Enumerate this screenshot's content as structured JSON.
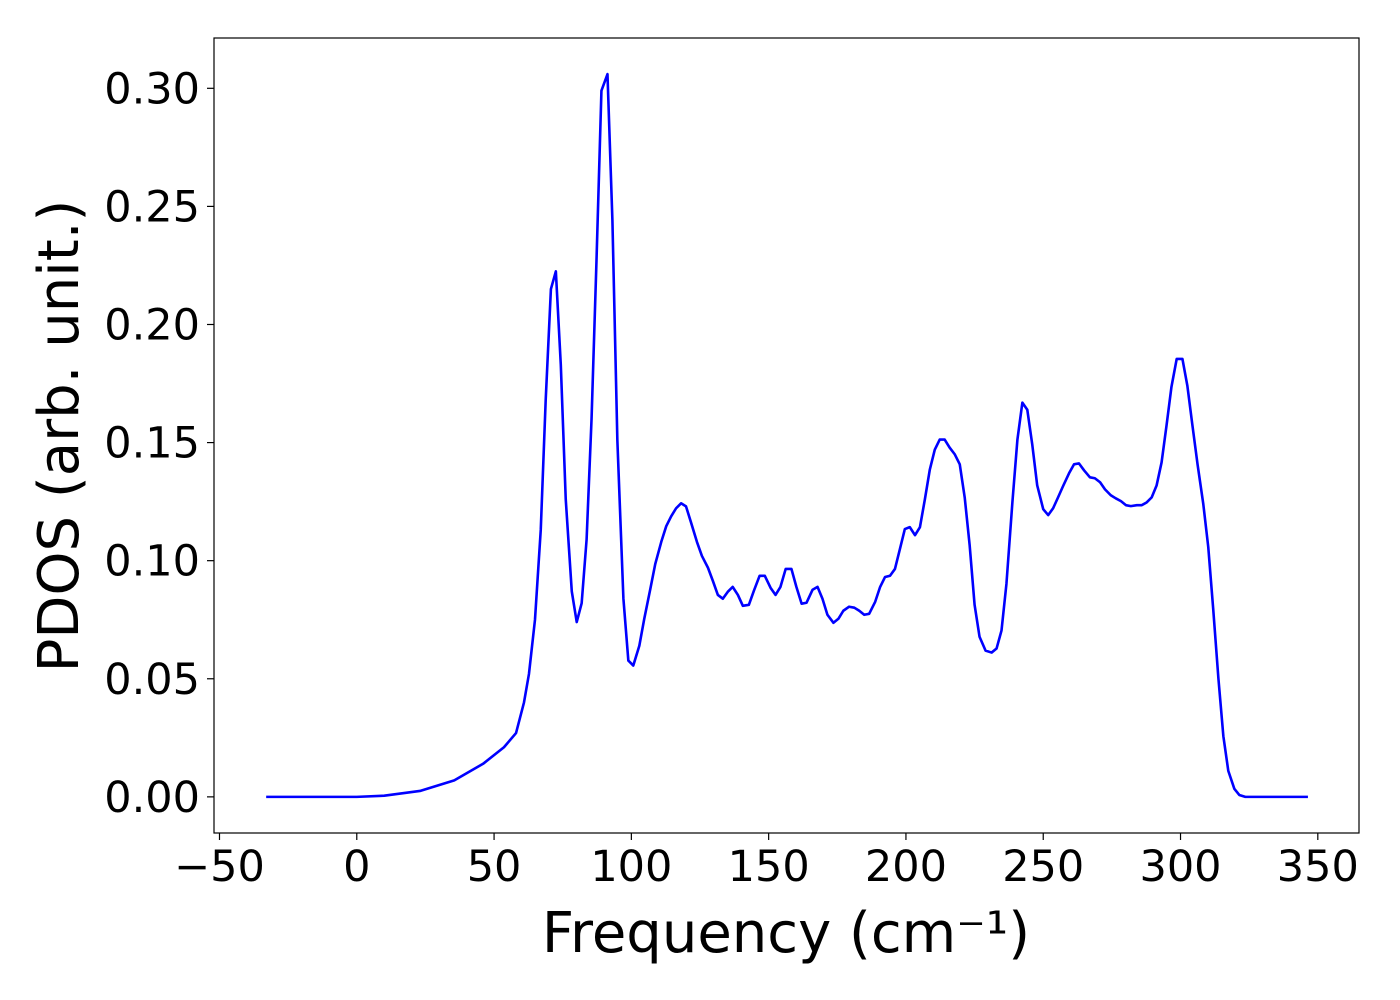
{
  "chart_data": {
    "type": "line",
    "xlabel": "Frequency (cm⁻¹)",
    "ylabel": "PDOS (arb. unit.)",
    "xlim": [
      -52,
      365
    ],
    "ylim": [
      -0.0153,
      0.3213
    ],
    "xticks": [
      {
        "value": -50,
        "label": "−50"
      },
      0,
      50,
      100,
      150,
      200,
      250,
      300,
      350
    ],
    "yticks": [
      {
        "value": 0,
        "label": "0.00"
      },
      {
        "value": 0.05,
        "label": "0.05"
      },
      {
        "value": 0.1,
        "label": "0.10"
      },
      {
        "value": 0.15,
        "label": "0.15"
      },
      {
        "value": 0.2,
        "label": "0.20"
      },
      {
        "value": 0.25,
        "label": "0.25"
      },
      {
        "value": 0.3,
        "label": "0.30"
      }
    ],
    "grid": false,
    "series": [
      {
        "color": "#0000ff",
        "x": [
          -33,
          0,
          10,
          23,
          35.5,
          46,
          53.6,
          58,
          60.9,
          62.7,
          64.9,
          67,
          68.8,
          70.7,
          72.5,
          74.3,
          76.1,
          78.3,
          80.1,
          81.9,
          83.7,
          85.5,
          87.3,
          89.1,
          91.3,
          93.1,
          94.9,
          97.1,
          98.9,
          100.7,
          102.9,
          104.7,
          106.9,
          108.7,
          110.9,
          112.7,
          114.5,
          116.3,
          118.1,
          119.9,
          121.7,
          123.9,
          125.7,
          127.9,
          129.7,
          131.5,
          133.3,
          135.1,
          136.9,
          138.8,
          140.6,
          142.8,
          144.6,
          146.7,
          148.6,
          150.7,
          152.5,
          154.3,
          156.2,
          158.3,
          160.1,
          162,
          163.8,
          166,
          167.8,
          169.6,
          171.4,
          173.6,
          175.4,
          177.2,
          179.3,
          181.2,
          183,
          184.8,
          186.6,
          188.8,
          190.6,
          192.4,
          194.2,
          196,
          197.8,
          199.6,
          201.4,
          203.3,
          205.1,
          206.9,
          208.7,
          210.5,
          212.3,
          214.1,
          215.9,
          217.8,
          219.6,
          221.4,
          223.2,
          225,
          226.8,
          229,
          231.2,
          233,
          234.8,
          236.6,
          238.8,
          240.6,
          242.4,
          244.2,
          246,
          247.8,
          250,
          251.8,
          253.6,
          255.4,
          257.2,
          259.4,
          261.2,
          263,
          264.9,
          267,
          268.8,
          270.7,
          272.5,
          274.6,
          276.4,
          278.3,
          280.1,
          281.9,
          284.1,
          285.9,
          287.7,
          289.5,
          291.3,
          293.1,
          294.9,
          296.7,
          298.6,
          300.7,
          302.5,
          304.3,
          306.2,
          308.3,
          310.1,
          311.9,
          313.8,
          315.6,
          317.4,
          319.6,
          321.4,
          323.6,
          346.4
        ],
        "values": [
          0,
          0,
          0.0005,
          0.0025,
          0.007,
          0.014,
          0.021,
          0.027,
          0.04,
          0.052,
          0.075,
          0.113,
          0.168,
          0.215,
          0.2225,
          0.183,
          0.126,
          0.087,
          0.074,
          0.082,
          0.109,
          0.16,
          0.227,
          0.299,
          0.306,
          0.244,
          0.151,
          0.084,
          0.0577,
          0.0556,
          0.064,
          0.0754,
          0.088,
          0.0986,
          0.108,
          0.1146,
          0.1188,
          0.1222,
          0.1243,
          0.123,
          0.1163,
          0.1079,
          0.102,
          0.097,
          0.0914,
          0.0855,
          0.0839,
          0.0868,
          0.0889,
          0.0855,
          0.0809,
          0.0813,
          0.0872,
          0.0936,
          0.0936,
          0.0885,
          0.0855,
          0.0889,
          0.0965,
          0.0965,
          0.0889,
          0.0818,
          0.0822,
          0.0877,
          0.0889,
          0.0839,
          0.0771,
          0.0737,
          0.0754,
          0.0788,
          0.0805,
          0.0801,
          0.0788,
          0.0771,
          0.0775,
          0.0826,
          0.0889,
          0.0931,
          0.0936,
          0.0965,
          0.1049,
          0.1134,
          0.1142,
          0.1108,
          0.1142,
          0.126,
          0.1386,
          0.147,
          0.1513,
          0.1513,
          0.1479,
          0.145,
          0.1408,
          0.1268,
          0.1066,
          0.0813,
          0.0678,
          0.0619,
          0.0611,
          0.0628,
          0.0704,
          0.0902,
          0.1252,
          0.1513,
          0.1669,
          0.1639,
          0.1492,
          0.1319,
          0.1218,
          0.1193,
          0.1222,
          0.1268,
          0.1315,
          0.137,
          0.1408,
          0.1412,
          0.1382,
          0.1353,
          0.1349,
          0.1332,
          0.1302,
          0.1277,
          0.1264,
          0.1252,
          0.1235,
          0.1231,
          0.1235,
          0.1235,
          0.1247,
          0.1268,
          0.1319,
          0.1416,
          0.1572,
          0.1736,
          0.1854,
          0.1854,
          0.174,
          0.1576,
          0.1408,
          0.1239,
          0.1058,
          0.0796,
          0.0501,
          0.0257,
          0.011,
          0.0034,
          0.0008,
          0,
          0
        ]
      }
    ]
  }
}
